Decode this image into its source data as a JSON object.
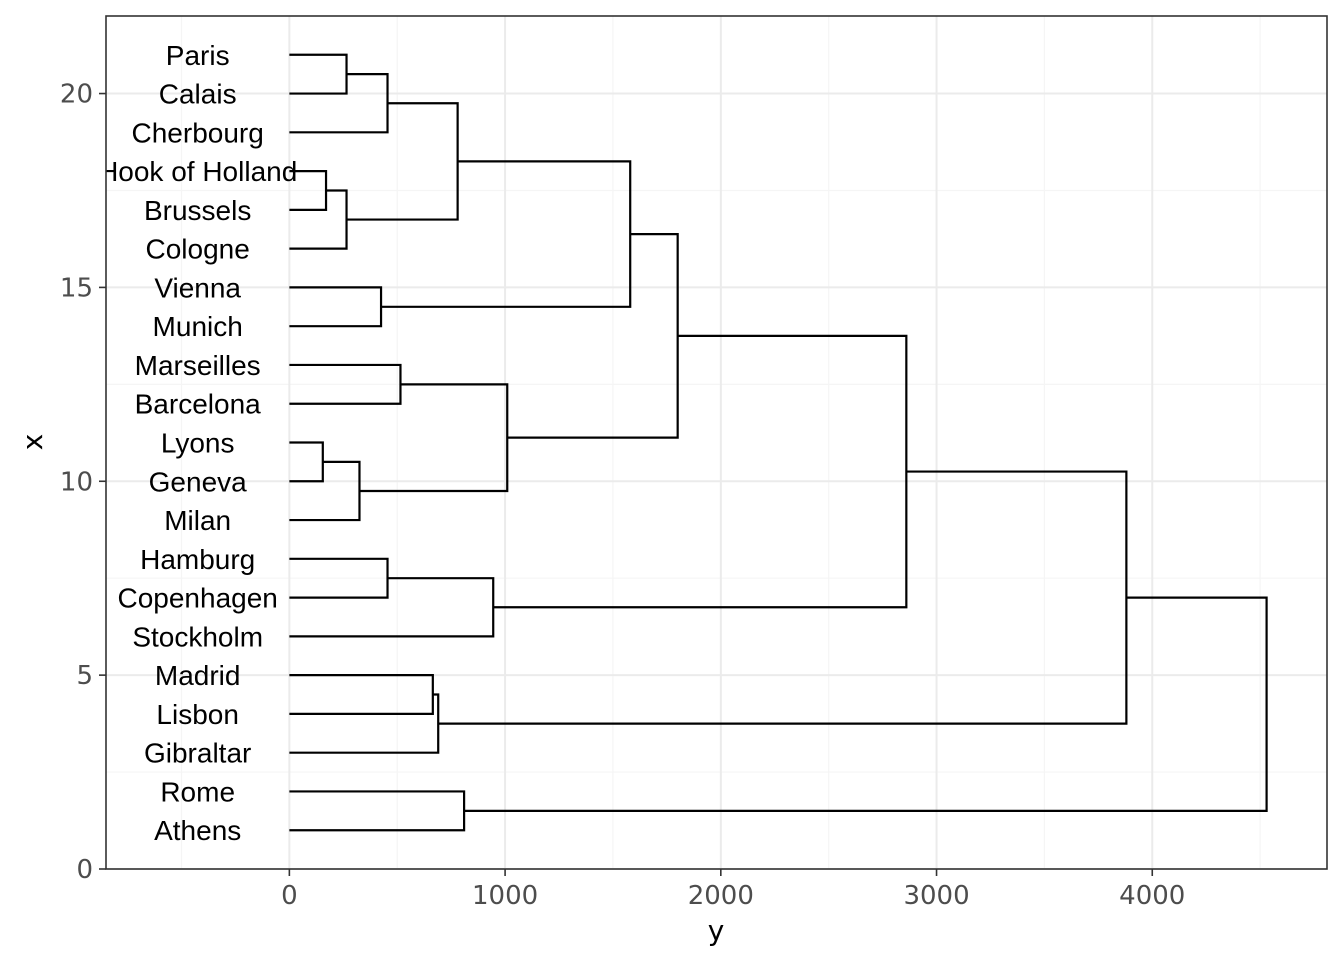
{
  "chart_data": {
    "type": "dendrogram",
    "orientation": "horizontal",
    "xlabel": "y",
    "ylabel": "x",
    "xlim": [
      -850,
      4810
    ],
    "ylim": [
      0,
      22
    ],
    "x_ticks": [
      0,
      1000,
      2000,
      3000,
      4000
    ],
    "x_tick_labels": [
      "0",
      "1000",
      "2000",
      "3000",
      "4000"
    ],
    "y_ticks": [
      0,
      5,
      10,
      15,
      20
    ],
    "y_tick_labels": [
      "0",
      "5",
      "10",
      "15",
      "20"
    ],
    "grid": true,
    "theme": "bw",
    "leaves": [
      {
        "label": "Athens",
        "position": 1
      },
      {
        "label": "Rome",
        "position": 2
      },
      {
        "label": "Gibraltar",
        "position": 3
      },
      {
        "label": "Lisbon",
        "position": 4
      },
      {
        "label": "Madrid",
        "position": 5
      },
      {
        "label": "Stockholm",
        "position": 6
      },
      {
        "label": "Copenhagen",
        "position": 7
      },
      {
        "label": "Hamburg",
        "position": 8
      },
      {
        "label": "Milan",
        "position": 9
      },
      {
        "label": "Geneva",
        "position": 10
      },
      {
        "label": "Lyons",
        "position": 11
      },
      {
        "label": "Barcelona",
        "position": 12
      },
      {
        "label": "Marseilles",
        "position": 13
      },
      {
        "label": "Munich",
        "position": 14
      },
      {
        "label": "Vienna",
        "position": 15
      },
      {
        "label": "Cologne",
        "position": 16
      },
      {
        "label": "Brussels",
        "position": 17
      },
      {
        "label": "Hook of Holland",
        "position": 18
      },
      {
        "label": "Cherbourg",
        "position": 19
      },
      {
        "label": "Calais",
        "position": 20
      },
      {
        "label": "Paris",
        "position": 21
      }
    ],
    "merges": [
      {
        "height": 155,
        "children": [
          {
            "leaf": 10
          },
          {
            "leaf": 11
          }
        ]
      },
      {
        "height": 170,
        "children": [
          {
            "leaf": 17
          },
          {
            "leaf": 18
          }
        ]
      },
      {
        "height": 265,
        "children": [
          {
            "leaf": 20
          },
          {
            "leaf": 21
          }
        ]
      },
      {
        "height": 265,
        "children": [
          {
            "leaf": 16
          },
          {
            "merge": 1
          }
        ]
      },
      {
        "height": 325,
        "children": [
          {
            "leaf": 9
          },
          {
            "merge": 0
          }
        ]
      },
      {
        "height": 425,
        "children": [
          {
            "leaf": 14
          },
          {
            "leaf": 15
          }
        ]
      },
      {
        "height": 455,
        "children": [
          {
            "leaf": 19
          },
          {
            "merge": 2
          }
        ]
      },
      {
        "height": 455,
        "children": [
          {
            "leaf": 7
          },
          {
            "leaf": 8
          }
        ]
      },
      {
        "height": 515,
        "children": [
          {
            "leaf": 12
          },
          {
            "leaf": 13
          }
        ]
      },
      {
        "height": 665,
        "children": [
          {
            "leaf": 4
          },
          {
            "leaf": 5
          }
        ]
      },
      {
        "height": 690,
        "children": [
          {
            "leaf": 3
          },
          {
            "merge": 9
          }
        ]
      },
      {
        "height": 780,
        "children": [
          {
            "merge": 3
          },
          {
            "merge": 6
          }
        ]
      },
      {
        "height": 810,
        "children": [
          {
            "leaf": 1
          },
          {
            "leaf": 2
          }
        ]
      },
      {
        "height": 945,
        "children": [
          {
            "leaf": 6
          },
          {
            "merge": 7
          }
        ]
      },
      {
        "height": 1010,
        "children": [
          {
            "merge": 4
          },
          {
            "merge": 8
          }
        ]
      },
      {
        "height": 1580,
        "children": [
          {
            "merge": 5
          },
          {
            "merge": 11
          }
        ]
      },
      {
        "height": 1800,
        "children": [
          {
            "merge": 14
          },
          {
            "merge": 15
          }
        ]
      },
      {
        "height": 2860,
        "children": [
          {
            "merge": 13
          },
          {
            "merge": 16
          }
        ]
      },
      {
        "height": 3880,
        "children": [
          {
            "merge": 10
          },
          {
            "merge": 17
          }
        ]
      },
      {
        "height": 4530,
        "children": [
          {
            "merge": 12
          },
          {
            "merge": 18
          }
        ]
      }
    ]
  },
  "colors": {
    "background": "#ffffff",
    "panel_border": "#333333",
    "grid_major": "#ebebeb",
    "grid_minor": "#f5f5f5",
    "tree_line": "#000000",
    "tick_text": "#4d4d4d"
  }
}
